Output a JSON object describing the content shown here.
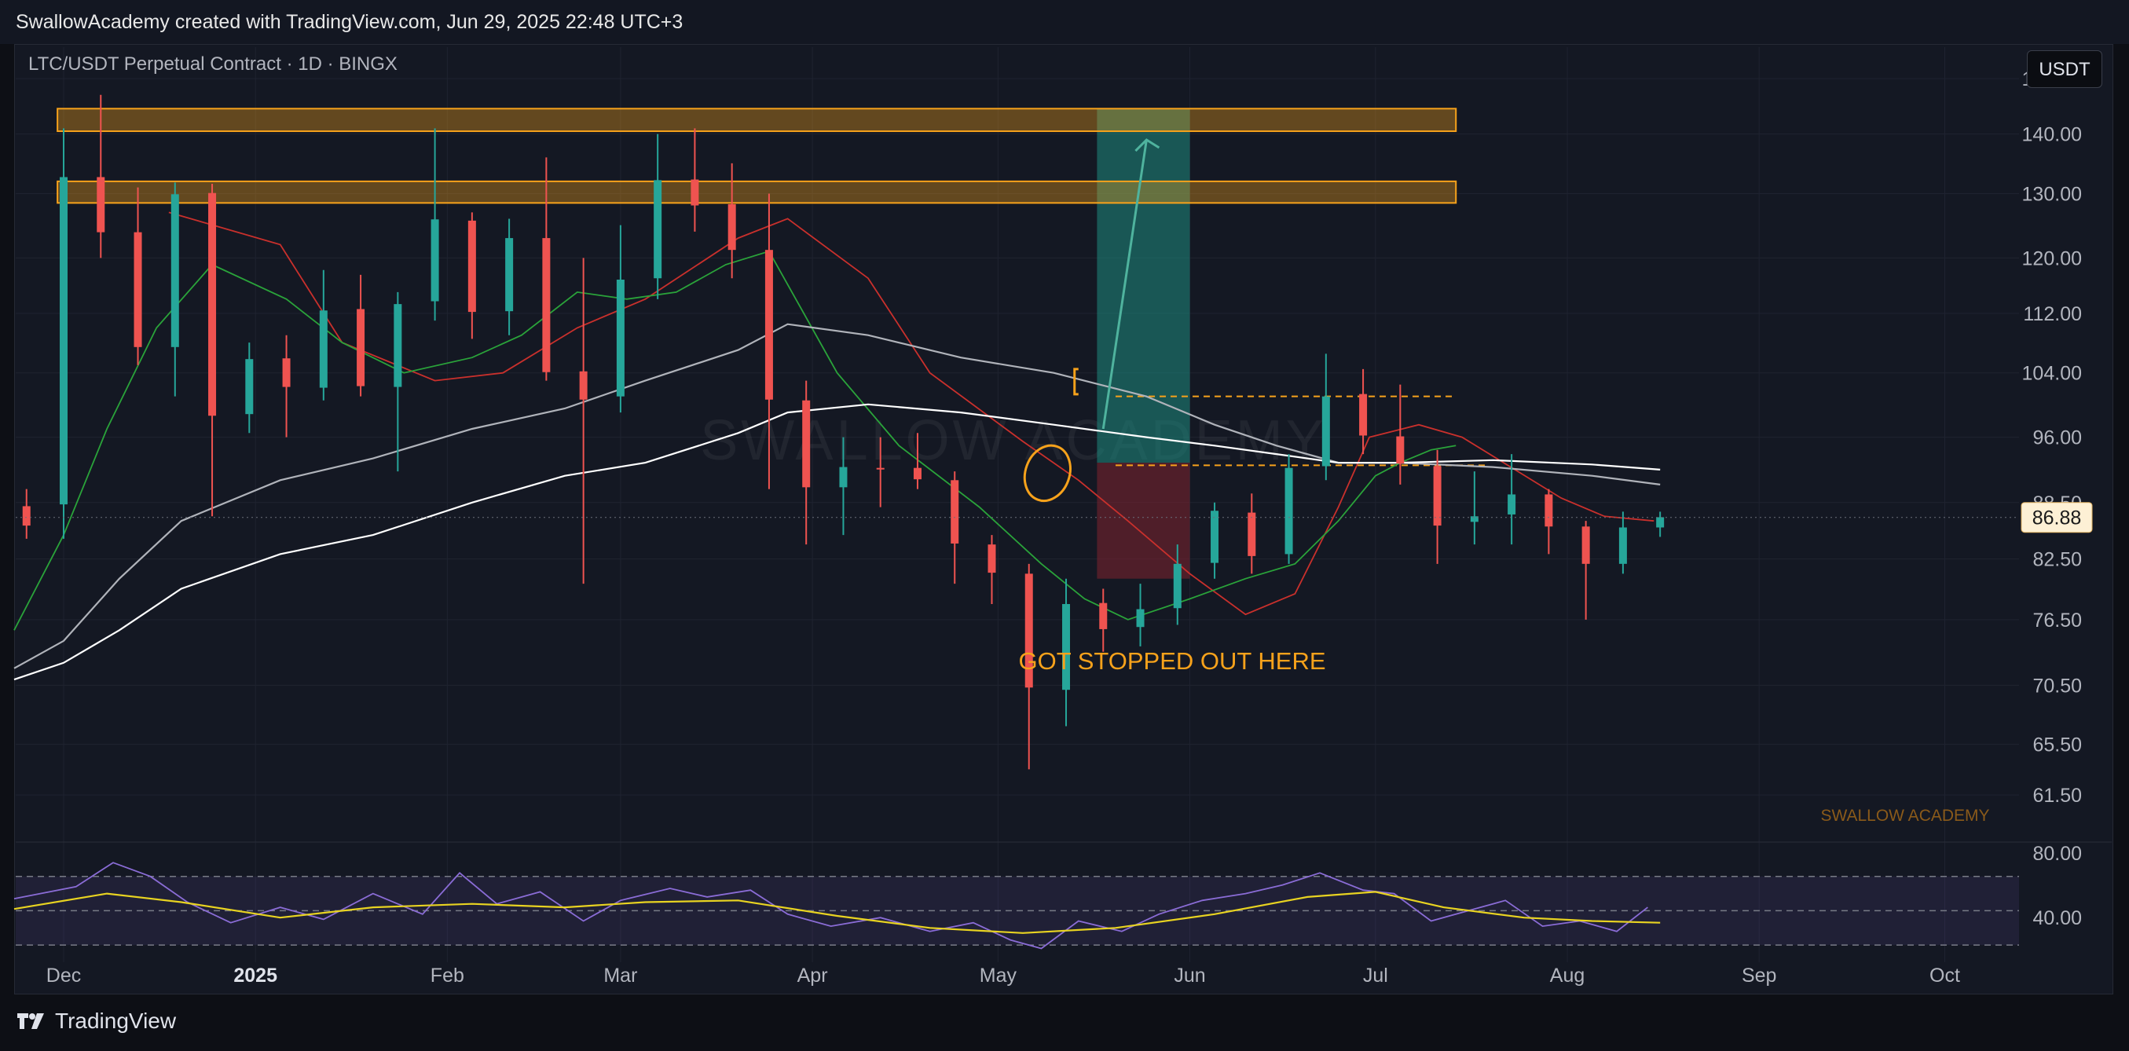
{
  "header": {
    "attribution": "SwallowAcademy created with TradingView.com, Jun 29, 2025 22:48 UTC+3"
  },
  "symbol": "LTC/USDT Perpetual Contract · 1D · BINGX",
  "currency_button": "USDT",
  "footer": {
    "brand": "TradingView",
    "brand_icon": "tradingview-logo-icon"
  },
  "watermark_text": "SWALLOW ACADEMY",
  "watermark_small": "SWALLOW ACADEMY",
  "annotation": "GOT STOPPED OUT HERE",
  "colors": {
    "bull": "#26a69a",
    "bear": "#ef5350",
    "zone": "#f7a21b",
    "ema_red": "#c9302c",
    "ema_green": "#2aa33a",
    "ma_gray": "#b0b3ba",
    "ma_white": "#ffffff",
    "rsi": "#8a6cd6",
    "rsi_ma": "#e8d321"
  },
  "chart_data": {
    "type": "candlestick",
    "scale": "log",
    "price_axis": {
      "ticks": [
        "150.00",
        "140.00",
        "130.00",
        "120.00",
        "112.00",
        "104.00",
        "96.00",
        "88.50",
        "82.50",
        "76.50",
        "70.50",
        "65.50",
        "61.50"
      ],
      "last_price": "86.88"
    },
    "time_axis": {
      "labels": [
        "Dec",
        "2025",
        "Feb",
        "Mar",
        "Apr",
        "May",
        "Jun",
        "Jul",
        "Aug",
        "Sep",
        "Oct"
      ],
      "range": [
        "2024-11-23",
        "2025-10-13"
      ]
    },
    "ylim": [
      58,
      156
    ],
    "resistance_zones": [
      [
        140.5,
        144.5
      ],
      [
        128.5,
        132.0
      ]
    ],
    "position": {
      "start": "2025-05-17",
      "end": "2025-06-01",
      "entry": 93.0,
      "target": 144.5,
      "stop": 80.5
    },
    "levels": [
      {
        "price": 101.0,
        "style": "dashed"
      },
      {
        "price": 92.7,
        "style": "dashed"
      }
    ],
    "candles": [
      [
        "2024-11-25",
        88.1,
        90.0,
        84.6,
        86.0
      ],
      [
        "2024-12-01",
        88.3,
        141.0,
        84.6,
        132.7
      ],
      [
        "2024-12-07",
        132.7,
        147.0,
        120.0,
        123.9
      ],
      [
        "2024-12-13",
        123.9,
        131.0,
        105.0,
        107.4
      ],
      [
        "2024-12-19",
        107.4,
        131.8,
        101.0,
        129.9
      ],
      [
        "2024-12-25",
        130.1,
        131.6,
        87.0,
        98.6
      ],
      [
        "2024-12-31",
        98.8,
        108.0,
        96.5,
        105.8
      ],
      [
        "2025-01-06",
        105.9,
        109.0,
        96.0,
        102.2
      ],
      [
        "2025-01-12",
        102.1,
        118.2,
        100.5,
        112.4
      ],
      [
        "2025-01-18",
        112.6,
        117.5,
        101.0,
        102.3
      ],
      [
        "2025-01-24",
        102.2,
        115.0,
        92.0,
        113.3
      ],
      [
        "2025-01-30",
        113.7,
        141.0,
        111.0,
        125.9
      ],
      [
        "2025-02-05",
        125.7,
        127.0,
        108.5,
        112.2
      ],
      [
        "2025-02-11",
        112.3,
        126.0,
        109.0,
        123.0
      ],
      [
        "2025-02-17",
        123.0,
        136.0,
        103.0,
        104.1
      ],
      [
        "2025-02-23",
        104.2,
        120.0,
        80.0,
        100.6
      ],
      [
        "2025-03-01",
        101.0,
        125.0,
        99.0,
        116.8
      ],
      [
        "2025-03-07",
        117.0,
        140.0,
        114.0,
        132.2
      ],
      [
        "2025-03-13",
        132.3,
        141.0,
        124.0,
        128.1
      ],
      [
        "2025-03-19",
        128.3,
        135.0,
        117.0,
        121.2
      ],
      [
        "2025-03-25",
        121.2,
        130.0,
        90.0,
        100.6
      ],
      [
        "2025-03-31",
        100.5,
        103.0,
        84.0,
        90.2
      ],
      [
        "2025-04-06",
        90.2,
        96.0,
        85.0,
        92.5
      ],
      [
        "2025-04-12",
        92.4,
        96.0,
        88.0,
        92.3
      ],
      [
        "2025-04-18",
        92.4,
        96.5,
        90.0,
        91.1
      ],
      [
        "2025-04-24",
        91.0,
        92.0,
        80.0,
        84.1
      ],
      [
        "2025-04-30",
        84.0,
        85.0,
        78.0,
        81.1
      ],
      [
        "2025-05-06",
        81.0,
        82.0,
        63.5,
        70.3
      ],
      [
        "2025-05-12",
        70.1,
        80.5,
        67.0,
        78.0
      ],
      [
        "2025-05-18",
        78.1,
        79.5,
        73.5,
        75.6
      ],
      [
        "2025-05-24",
        75.8,
        80.0,
        74.0,
        77.5
      ],
      [
        "2025-05-30",
        77.6,
        84.0,
        76.0,
        82.0
      ],
      [
        "2025-06-05",
        82.1,
        88.5,
        80.5,
        87.6
      ],
      [
        "2025-06-11",
        87.4,
        89.5,
        81.0,
        82.8
      ],
      [
        "2025-06-17",
        83.0,
        94.0,
        82.0,
        92.4
      ],
      [
        "2025-06-23",
        92.6,
        106.5,
        91.0,
        101.0
      ],
      [
        "2025-06-29",
        101.3,
        104.5,
        94.0,
        96.2
      ],
      [
        "2025-07-05",
        96.1,
        102.5,
        90.5,
        92.9
      ],
      [
        "2025-07-11",
        92.6,
        94.5,
        82.0,
        86.0
      ],
      [
        "2025-07-17",
        86.4,
        92.0,
        84.0,
        87.0
      ],
      [
        "2025-07-23",
        87.2,
        94.0,
        84.0,
        89.4
      ],
      [
        "2025-07-29",
        89.4,
        90.0,
        83.0,
        85.9
      ],
      [
        "2025-08-04",
        85.9,
        86.5,
        76.5,
        82.0
      ],
      [
        "2025-08-10",
        82.0,
        87.5,
        81.0,
        85.8
      ],
      [
        "2025-08-16",
        85.8,
        87.5,
        84.8,
        86.9
      ]
    ],
    "series": [
      {
        "name": "",
        "color": "#c9302c",
        "points": [
          [
            "2024-12-18",
            127.0
          ],
          [
            "2025-01-05",
            122.0
          ],
          [
            "2025-01-15",
            108.0
          ],
          [
            "2025-01-30",
            103.0
          ],
          [
            "2025-02-10",
            104.0
          ],
          [
            "2025-02-22",
            110.0
          ],
          [
            "2025-03-05",
            114.0
          ],
          [
            "2025-03-20",
            123.0
          ],
          [
            "2025-03-28",
            126.0
          ],
          [
            "2025-04-10",
            117.0
          ],
          [
            "2025-04-20",
            104.0
          ],
          [
            "2025-05-05",
            95.5
          ],
          [
            "2025-05-14",
            91.0
          ],
          [
            "2025-05-22",
            86.5
          ],
          [
            "2025-06-01",
            81.0
          ],
          [
            "2025-06-10",
            77.0
          ],
          [
            "2025-06-18",
            79.0
          ],
          [
            "2025-06-25",
            88.0
          ],
          [
            "2025-06-30",
            96.0
          ],
          [
            "2025-07-08",
            97.5
          ],
          [
            "2025-07-15",
            96.0
          ],
          [
            "2025-07-24",
            92.0
          ],
          [
            "2025-07-31",
            89.0
          ],
          [
            "2025-08-07",
            87.0
          ],
          [
            "2025-08-15",
            86.5
          ]
        ]
      },
      {
        "name": "",
        "color": "#2aa33a",
        "points": [
          [
            "2024-11-23",
            75.5
          ],
          [
            "2024-12-01",
            85.0
          ],
          [
            "2024-12-08",
            97.0
          ],
          [
            "2024-12-16",
            110.0
          ],
          [
            "2024-12-25",
            119.0
          ],
          [
            "2025-01-06",
            114.0
          ],
          [
            "2025-01-15",
            108.0
          ],
          [
            "2025-01-25",
            104.0
          ],
          [
            "2025-02-05",
            106.0
          ],
          [
            "2025-02-13",
            109.0
          ],
          [
            "2025-02-22",
            115.0
          ],
          [
            "2025-03-02",
            114.0
          ],
          [
            "2025-03-10",
            115.0
          ],
          [
            "2025-03-18",
            119.0
          ],
          [
            "2025-03-25",
            121.0
          ],
          [
            "2025-04-05",
            104.0
          ],
          [
            "2025-04-15",
            95.0
          ],
          [
            "2025-04-28",
            88.0
          ],
          [
            "2025-05-08",
            82.0
          ],
          [
            "2025-05-15",
            78.5
          ],
          [
            "2025-05-22",
            76.5
          ],
          [
            "2025-06-01",
            78.5
          ],
          [
            "2025-06-10",
            80.5
          ],
          [
            "2025-06-18",
            82.0
          ],
          [
            "2025-06-25",
            86.5
          ],
          [
            "2025-07-01",
            91.5
          ],
          [
            "2025-07-05",
            93.0
          ],
          [
            "2025-07-10",
            94.5
          ],
          [
            "2025-07-14",
            95.0
          ]
        ]
      },
      {
        "name": "",
        "color": "#b0b3ba",
        "points": [
          [
            "2024-11-23",
            72.0
          ],
          [
            "2024-12-01",
            74.5
          ],
          [
            "2024-12-10",
            80.5
          ],
          [
            "2024-12-20",
            86.5
          ],
          [
            "2025-01-05",
            91.0
          ],
          [
            "2025-01-20",
            93.5
          ],
          [
            "2025-02-05",
            97.0
          ],
          [
            "2025-02-20",
            99.5
          ],
          [
            "2025-03-05",
            103.0
          ],
          [
            "2025-03-20",
            107.0
          ],
          [
            "2025-03-28",
            110.5
          ],
          [
            "2025-04-10",
            109.0
          ],
          [
            "2025-04-25",
            106.0
          ],
          [
            "2025-05-10",
            104.0
          ],
          [
            "2025-05-25",
            101.0
          ],
          [
            "2025-06-05",
            97.5
          ],
          [
            "2025-06-15",
            95.0
          ],
          [
            "2025-06-25",
            93.0
          ],
          [
            "2025-07-05",
            93.0
          ],
          [
            "2025-07-20",
            92.5
          ],
          [
            "2025-08-05",
            91.5
          ],
          [
            "2025-08-16",
            90.5
          ]
        ]
      },
      {
        "name": "",
        "color": "#ffffff",
        "points": [
          [
            "2024-11-23",
            71.0
          ],
          [
            "2024-12-01",
            72.5
          ],
          [
            "2024-12-10",
            75.5
          ],
          [
            "2024-12-20",
            79.5
          ],
          [
            "2025-01-05",
            83.0
          ],
          [
            "2025-01-20",
            85.0
          ],
          [
            "2025-02-05",
            88.5
          ],
          [
            "2025-02-20",
            91.5
          ],
          [
            "2025-03-05",
            93.0
          ],
          [
            "2025-03-20",
            96.5
          ],
          [
            "2025-03-28",
            99.0
          ],
          [
            "2025-04-10",
            100.0
          ],
          [
            "2025-04-25",
            99.0
          ],
          [
            "2025-05-10",
            97.5
          ],
          [
            "2025-05-25",
            96.0
          ],
          [
            "2025-06-05",
            95.0
          ],
          [
            "2025-06-15",
            94.0
          ],
          [
            "2025-06-25",
            93.0
          ],
          [
            "2025-07-05",
            93.0
          ],
          [
            "2025-07-20",
            93.3
          ],
          [
            "2025-08-05",
            92.8
          ],
          [
            "2025-08-16",
            92.2
          ]
        ]
      }
    ],
    "rsi": {
      "ticks": [
        "80.00",
        "40.00"
      ],
      "upper": 70,
      "middle": 50,
      "lower": 30,
      "points": [
        [
          "2024-11-23",
          57
        ],
        [
          "2024-12-03",
          64
        ],
        [
          "2024-12-09",
          78
        ],
        [
          "2024-12-15",
          70
        ],
        [
          "2024-12-21",
          55
        ],
        [
          "2024-12-28",
          43
        ],
        [
          "2025-01-05",
          52
        ],
        [
          "2025-01-12",
          45
        ],
        [
          "2025-01-20",
          60
        ],
        [
          "2025-01-28",
          48
        ],
        [
          "2025-02-03",
          72
        ],
        [
          "2025-02-09",
          54
        ],
        [
          "2025-02-16",
          61
        ],
        [
          "2025-02-23",
          44
        ],
        [
          "2025-03-01",
          56
        ],
        [
          "2025-03-09",
          63
        ],
        [
          "2025-03-15",
          58
        ],
        [
          "2025-03-22",
          62
        ],
        [
          "2025-03-28",
          48
        ],
        [
          "2025-04-04",
          41
        ],
        [
          "2025-04-12",
          46
        ],
        [
          "2025-04-20",
          38
        ],
        [
          "2025-04-27",
          43
        ],
        [
          "2025-05-03",
          33
        ],
        [
          "2025-05-08",
          28
        ],
        [
          "2025-05-14",
          44
        ],
        [
          "2025-05-21",
          38
        ],
        [
          "2025-05-27",
          48
        ],
        [
          "2025-06-03",
          56
        ],
        [
          "2025-06-10",
          60
        ],
        [
          "2025-06-16",
          65
        ],
        [
          "2025-06-22",
          72
        ],
        [
          "2025-06-29",
          62
        ],
        [
          "2025-07-04",
          60
        ],
        [
          "2025-07-10",
          44
        ],
        [
          "2025-07-16",
          50
        ],
        [
          "2025-07-22",
          56
        ],
        [
          "2025-07-28",
          41
        ],
        [
          "2025-08-03",
          44
        ],
        [
          "2025-08-09",
          38
        ],
        [
          "2025-08-14",
          52
        ]
      ],
      "ma_points": [
        [
          "2024-11-23",
          51
        ],
        [
          "2024-12-08",
          60
        ],
        [
          "2024-12-20",
          55
        ],
        [
          "2025-01-05",
          46
        ],
        [
          "2025-01-20",
          52
        ],
        [
          "2025-02-05",
          54
        ],
        [
          "2025-02-20",
          52
        ],
        [
          "2025-03-05",
          55
        ],
        [
          "2025-03-20",
          56
        ],
        [
          "2025-04-05",
          47
        ],
        [
          "2025-04-20",
          40
        ],
        [
          "2025-05-05",
          37
        ],
        [
          "2025-05-20",
          40
        ],
        [
          "2025-06-05",
          48
        ],
        [
          "2025-06-20",
          58
        ],
        [
          "2025-07-01",
          61
        ],
        [
          "2025-07-12",
          52
        ],
        [
          "2025-07-25",
          46
        ],
        [
          "2025-08-05",
          44
        ],
        [
          "2025-08-16",
          43
        ]
      ]
    }
  }
}
